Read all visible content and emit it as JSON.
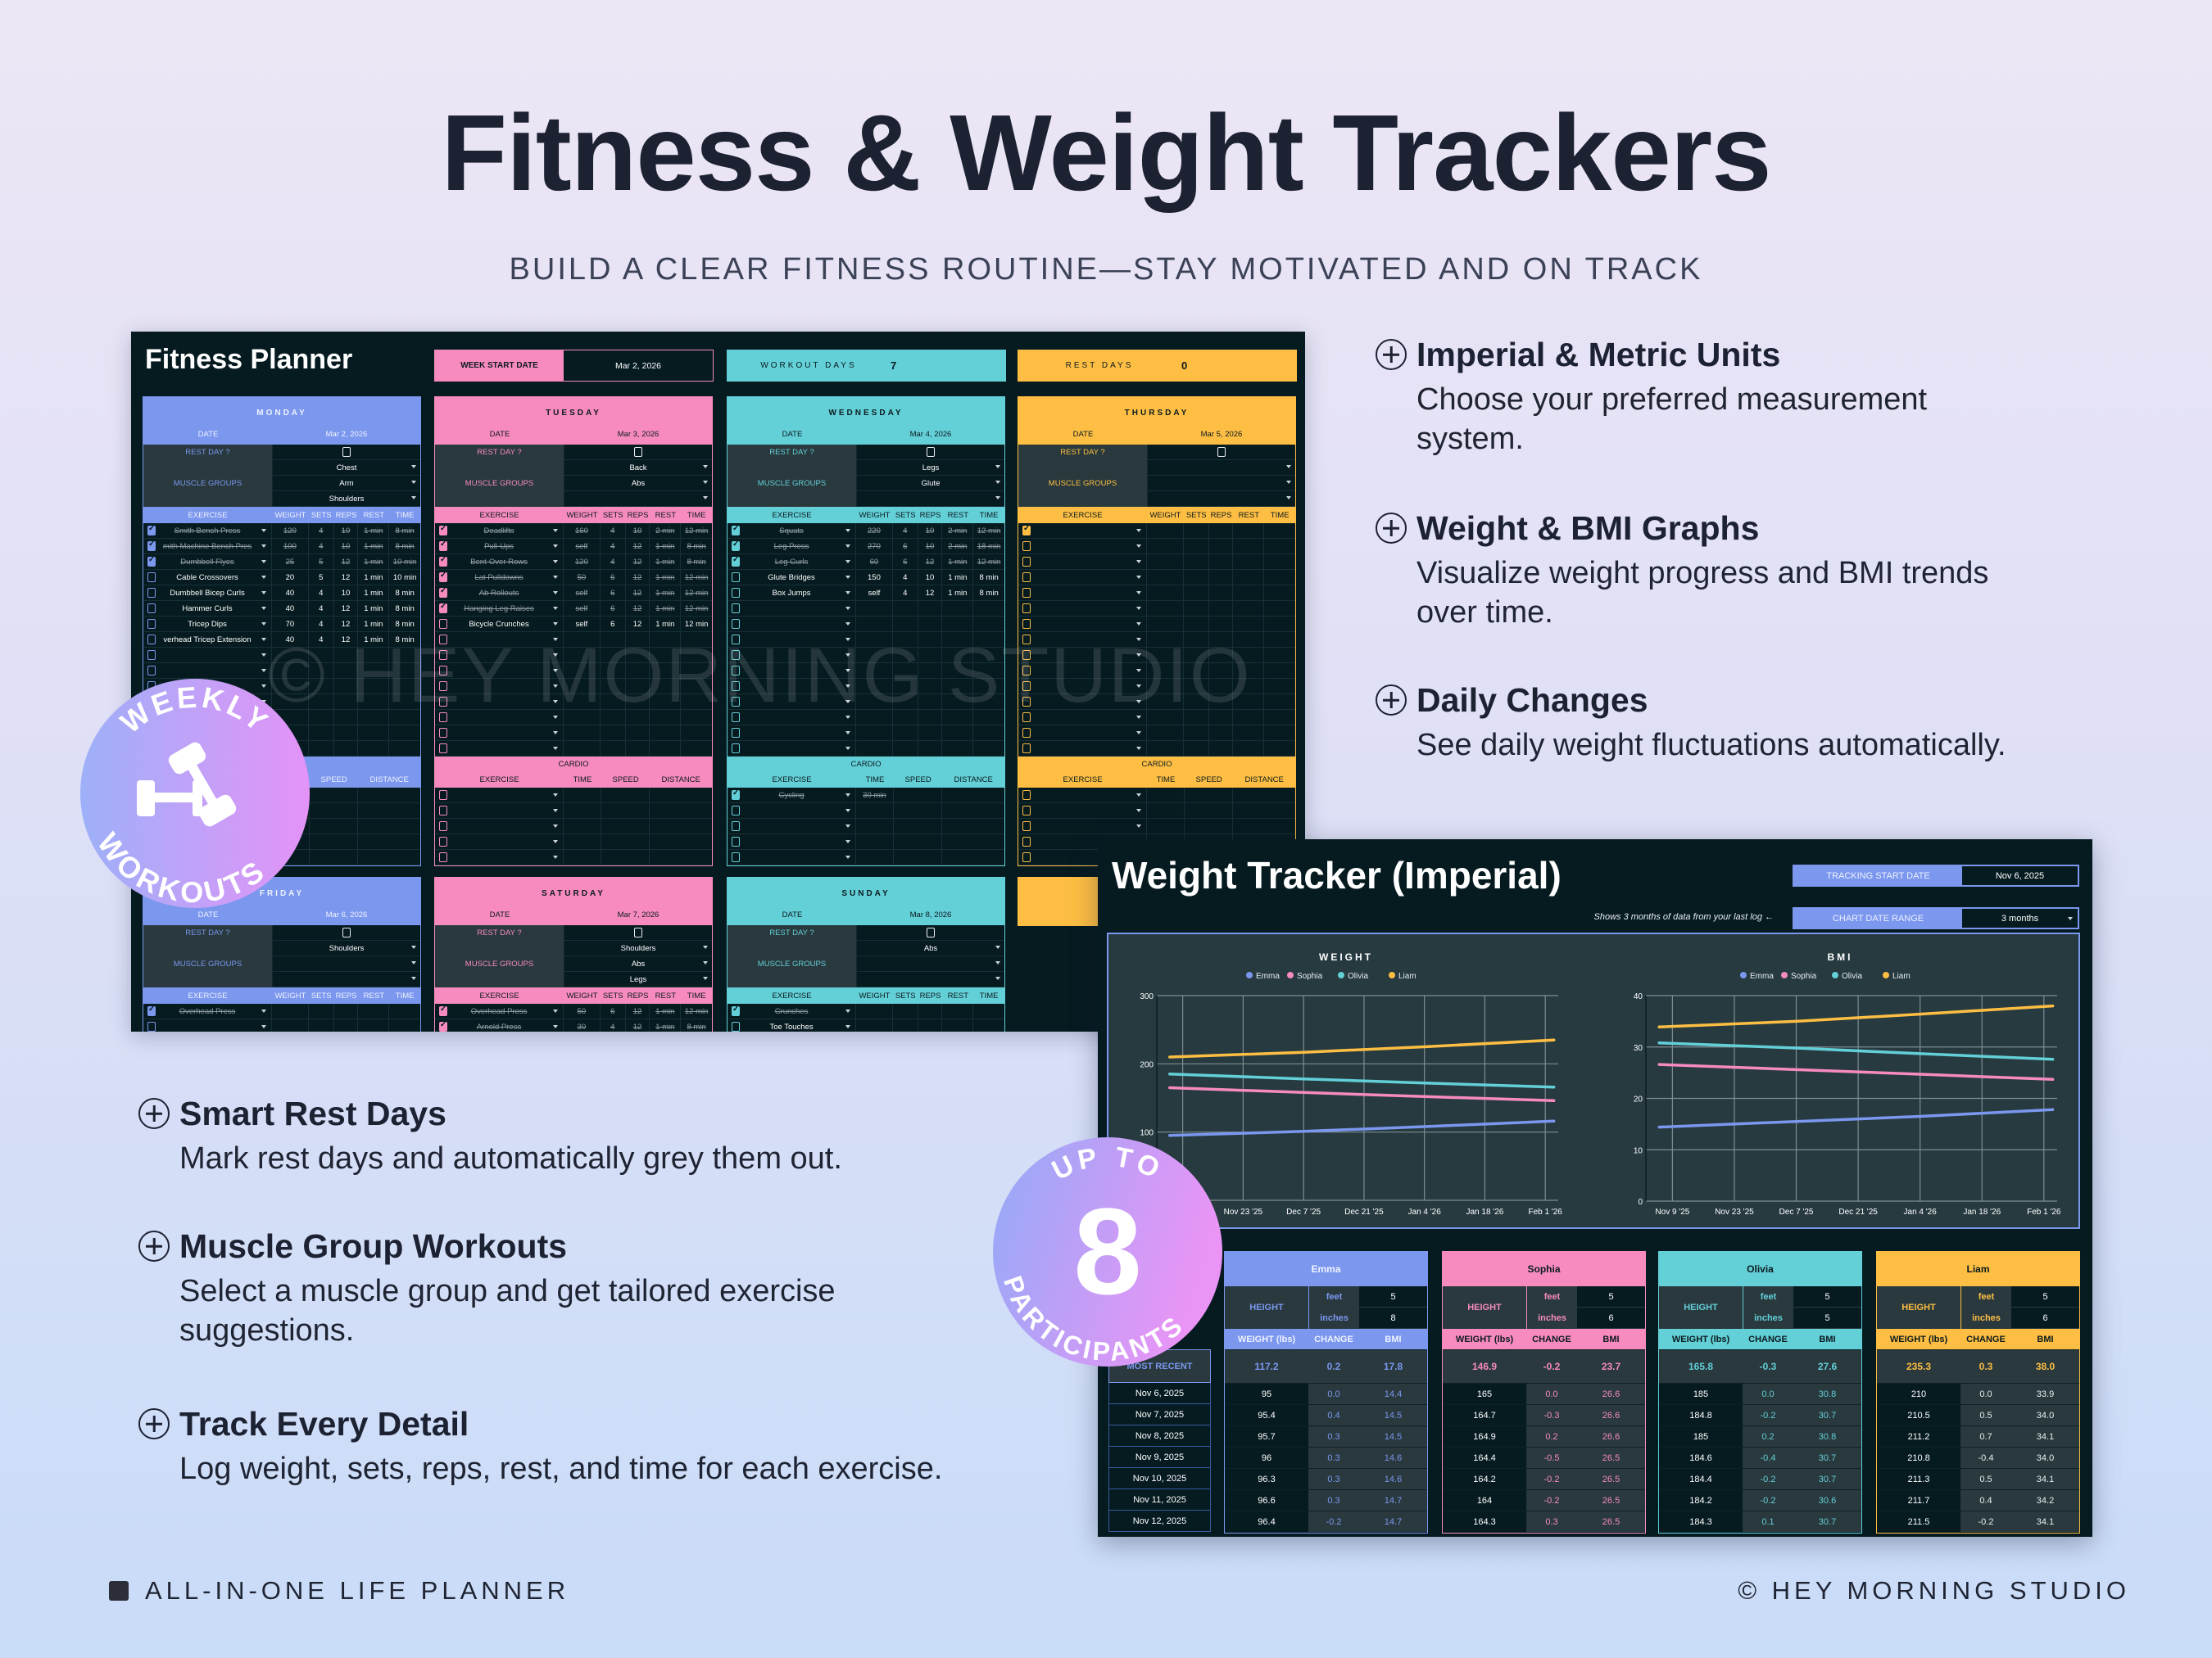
{
  "header": {
    "title": "Fitness & Weight Trackers",
    "subtitle": "BUILD A CLEAR FITNESS ROUTINE—STAY MOTIVATED AND ON TRACK"
  },
  "features_right": [
    {
      "heading": "Imperial & Metric Units",
      "desc_lines": [
        "Choose your preferred measurement",
        "system."
      ]
    },
    {
      "heading": "Weight & BMI Graphs",
      "desc_lines": [
        "Visualize weight progress and BMI trends",
        "over time."
      ]
    },
    {
      "heading": "Daily Changes",
      "desc_lines": [
        "See daily weight fluctuations automatically."
      ]
    }
  ],
  "features_left": [
    {
      "heading": "Smart Rest Days",
      "desc_lines": [
        "Mark rest days and automatically grey them out."
      ]
    },
    {
      "heading": "Muscle Group Workouts",
      "desc_lines": [
        "Select a muscle group and get tailored exercise",
        "suggestions."
      ]
    },
    {
      "heading": "Track Every Detail",
      "desc_lines": [
        "Log weight, sets, reps, rest, and time for each exercise."
      ]
    }
  ],
  "badges": {
    "weekly": {
      "top": "WEEKLY",
      "bottom": "WORKOUTS",
      "icon": "dumbbell-icon"
    },
    "participants": {
      "top": "UP TO",
      "number": "8",
      "bottom": "PARTICIPANTS"
    }
  },
  "footer": {
    "left": "ALL-IN-ONE LIFE PLANNER",
    "right": "© HEY MORNING STUDIO"
  },
  "colors": {
    "blue": "#7b97ee",
    "pink": "#f78bbf",
    "teal": "#63cfd7",
    "yellow": "#fdbe43",
    "panel": "#061b20",
    "cell_gray": "#29393e"
  },
  "planner": {
    "title": "Fitness Planner",
    "week_start_label": "WEEK START DATE",
    "week_start": "Mar 2, 2026",
    "workout_days_label": "WORKOUT DAYS",
    "workout_days": "7",
    "rest_days_label": "REST DAYS",
    "rest_days": "0",
    "watermark": "© HEY MORNING STUDIO",
    "labels": {
      "date": "DATE",
      "rest_day": "REST DAY ?",
      "muscle_groups": "MUSCLE GROUPS",
      "cardio": "CARDIO",
      "exercise_cols": [
        "EXERCISE",
        "WEIGHT",
        "SETS",
        "REPS",
        "REST",
        "TIME"
      ],
      "cardio_cols": [
        "EXERCISE",
        "TIME",
        "SPEED",
        "DISTANCE"
      ]
    },
    "days": [
      {
        "name": "MONDAY",
        "date": "Mar 2, 2026",
        "color": "#7b97ee",
        "text_color": "#eef2ff",
        "rest_day": false,
        "muscle_groups": [
          "Chest",
          "Arm",
          "Shoulders"
        ],
        "exercises": [
          {
            "done": true,
            "name": "Smith Bench Press",
            "weight": "120",
            "sets": "4",
            "reps": "10",
            "rest": "1 min",
            "time": "8 min"
          },
          {
            "done": true,
            "name": "mith Machine Bench Pres",
            "weight": "100",
            "sets": "4",
            "reps": "10",
            "rest": "1 min",
            "time": "8 min"
          },
          {
            "done": true,
            "name": "Dumbbell Flyes",
            "weight": "25",
            "sets": "5",
            "reps": "12",
            "rest": "1 min",
            "time": "10 min"
          },
          {
            "done": false,
            "name": "Cable Crossovers",
            "weight": "20",
            "sets": "5",
            "reps": "12",
            "rest": "1 min",
            "time": "10 min"
          },
          {
            "done": false,
            "name": "Dumbbell Bicep Curls",
            "weight": "40",
            "sets": "4",
            "reps": "10",
            "rest": "1 min",
            "time": "8 min"
          },
          {
            "done": false,
            "name": "Hammer Curls",
            "weight": "40",
            "sets": "4",
            "reps": "12",
            "rest": "1 min",
            "time": "8 min"
          },
          {
            "done": false,
            "name": "Tricep Dips",
            "weight": "70",
            "sets": "4",
            "reps": "12",
            "rest": "1 min",
            "time": "8 min"
          },
          {
            "done": false,
            "name": "verhead Tricep Extension",
            "weight": "40",
            "sets": "4",
            "reps": "12",
            "rest": "1 min",
            "time": "8 min"
          }
        ],
        "cardio": []
      },
      {
        "name": "TUESDAY",
        "date": "Mar 3, 2026",
        "color": "#f78bbf",
        "text_color": "#0b1a1e",
        "rest_day": false,
        "muscle_groups": [
          "Back",
          "Abs",
          ""
        ],
        "exercises": [
          {
            "done": true,
            "name": "Deadlifts",
            "weight": "160",
            "sets": "4",
            "reps": "10",
            "rest": "2 min",
            "time": "12 min"
          },
          {
            "done": true,
            "name": "Pull-Ups",
            "weight": "self",
            "sets": "4",
            "reps": "12",
            "rest": "1 min",
            "time": "8 min"
          },
          {
            "done": true,
            "name": "Bent-Over Rows",
            "weight": "120",
            "sets": "4",
            "reps": "12",
            "rest": "1 min",
            "time": "8 min"
          },
          {
            "done": true,
            "name": "Lat Pulldowns",
            "weight": "50",
            "sets": "6",
            "reps": "12",
            "rest": "1 min",
            "time": "12 min"
          },
          {
            "done": true,
            "name": "Ab Rollouts",
            "weight": "self",
            "sets": "6",
            "reps": "12",
            "rest": "1 min",
            "time": "12 min"
          },
          {
            "done": true,
            "name": "Hanging Leg Raises",
            "weight": "self",
            "sets": "6",
            "reps": "12",
            "rest": "1 min",
            "time": "12 min"
          },
          {
            "done": false,
            "name": "Bicycle Crunches",
            "weight": "self",
            "sets": "6",
            "reps": "12",
            "rest": "1 min",
            "time": "12 min"
          }
        ],
        "cardio": []
      },
      {
        "name": "WEDNESDAY",
        "date": "Mar 4, 2026",
        "color": "#63cfd7",
        "text_color": "#0b1a1e",
        "rest_day": false,
        "muscle_groups": [
          "Legs",
          "Glute",
          ""
        ],
        "exercises": [
          {
            "done": true,
            "name": "Squats",
            "weight": "220",
            "sets": "4",
            "reps": "10",
            "rest": "2 min",
            "time": "12 min"
          },
          {
            "done": true,
            "name": "Leg Press",
            "weight": "270",
            "sets": "6",
            "reps": "10",
            "rest": "2 min",
            "time": "18 min"
          },
          {
            "done": true,
            "name": "Leg Curls",
            "weight": "60",
            "sets": "6",
            "reps": "12",
            "rest": "1 min",
            "time": "12 min"
          },
          {
            "done": false,
            "name": "Glute Bridges",
            "weight": "150",
            "sets": "4",
            "reps": "10",
            "rest": "1 min",
            "time": "8 min"
          },
          {
            "done": false,
            "name": "Box Jumps",
            "weight": "self",
            "sets": "4",
            "reps": "12",
            "rest": "1 min",
            "time": "8 min"
          }
        ],
        "cardio": [
          {
            "done": true,
            "name": "Cycling",
            "time": "30 min",
            "speed": "",
            "distance": ""
          }
        ]
      },
      {
        "name": "THURSDAY",
        "date": "Mar 5, 2026",
        "color": "#fdbe43",
        "text_color": "#0b1a1e",
        "rest_day": false,
        "muscle_groups": [
          "",
          "",
          ""
        ],
        "exercises": [
          {
            "done": true,
            "name": "",
            "weight": "",
            "sets": "",
            "reps": "",
            "rest": "",
            "time": ""
          }
        ],
        "cardio": []
      },
      {
        "name": "FRIDAY",
        "date": "Mar 6, 2026",
        "color": "#7b97ee",
        "text_color": "#eef2ff",
        "rest_day": false,
        "muscle_groups": [
          "Shoulders",
          "",
          ""
        ],
        "exercises": [
          {
            "done": true,
            "name": "Overhead Press",
            "weight": "",
            "sets": "",
            "reps": "",
            "rest": "",
            "time": ""
          }
        ],
        "cardio": []
      },
      {
        "name": "SATURDAY",
        "date": "Mar 7, 2026",
        "color": "#f78bbf",
        "text_color": "#0b1a1e",
        "rest_day": false,
        "muscle_groups": [
          "Shoulders",
          "Abs",
          "Legs"
        ],
        "exercises": [
          {
            "done": true,
            "name": "Overhead Press",
            "weight": "50",
            "sets": "6",
            "reps": "12",
            "rest": "1 min",
            "time": "12 min"
          },
          {
            "done": true,
            "name": "Arnold Press",
            "weight": "30",
            "sets": "4",
            "reps": "12",
            "rest": "1 min",
            "time": "8 min"
          }
        ],
        "cardio": []
      },
      {
        "name": "SUNDAY",
        "date": "Mar 8, 2026",
        "color": "#63cfd7",
        "text_color": "#0b1a1e",
        "rest_day": false,
        "muscle_groups": [
          "Abs",
          "",
          ""
        ],
        "exercises": [
          {
            "done": true,
            "name": "Crunches",
            "weight": "",
            "sets": "",
            "reps": "",
            "rest": "",
            "time": ""
          },
          {
            "done": false,
            "name": "Toe Touches",
            "weight": "",
            "sets": "",
            "reps": "",
            "rest": "",
            "time": ""
          }
        ],
        "cardio": []
      }
    ]
  },
  "tracker": {
    "title": "Weight Tracker (Imperial)",
    "tracking_start_label": "TRACKING START DATE",
    "tracking_start": "Nov 6, 2025",
    "range_note": "Shows 3 months of data from your last log ←",
    "range_label": "CHART DATE RANGE",
    "range_value": "3 months",
    "labels": {
      "height": "HEIGHT",
      "feet": "feet",
      "inches": "inches",
      "weight": "WEIGHT (lbs)",
      "change": "CHANGE",
      "bmi": "BMI",
      "most_recent": "MOST RECENT"
    },
    "dates": [
      "Nov 6, 2025",
      "Nov 7, 2025",
      "Nov 8, 2025",
      "Nov 9, 2025",
      "Nov 10, 2025",
      "Nov 11, 2025",
      "Nov 12, 2025"
    ],
    "participants": [
      {
        "name": "Emma",
        "color": "#7b97ee",
        "name_color": "#eef2ff",
        "feet": "5",
        "inches": "8",
        "recent": {
          "weight": "117.2",
          "change": "0.2",
          "bmi": "17.8"
        },
        "rows": [
          [
            "95",
            "0.0",
            "14.4"
          ],
          [
            "95.4",
            "0.4",
            "14.5"
          ],
          [
            "95.7",
            "0.3",
            "14.5"
          ],
          [
            "96",
            "0.3",
            "14.6"
          ],
          [
            "96.3",
            "0.3",
            "14.6"
          ],
          [
            "96.6",
            "0.3",
            "14.7"
          ],
          [
            "96.4",
            "-0.2",
            "14.7"
          ]
        ]
      },
      {
        "name": "Sophia",
        "color": "#f78bbf",
        "name_color": "#0b1a1e",
        "feet": "5",
        "inches": "6",
        "recent": {
          "weight": "146.9",
          "change": "-0.2",
          "bmi": "23.7"
        },
        "rows": [
          [
            "165",
            "0.0",
            "26.6"
          ],
          [
            "164.7",
            "-0.3",
            "26.6"
          ],
          [
            "164.9",
            "0.2",
            "26.6"
          ],
          [
            "164.4",
            "-0.5",
            "26.5"
          ],
          [
            "164.2",
            "-0.2",
            "26.5"
          ],
          [
            "164",
            "-0.2",
            "26.5"
          ],
          [
            "164.3",
            "0.3",
            "26.5"
          ]
        ]
      },
      {
        "name": "Olivia",
        "color": "#63cfd7",
        "name_color": "#0b1a1e",
        "feet": "5",
        "inches": "5",
        "recent": {
          "weight": "165.8",
          "change": "-0.3",
          "bmi": "27.6"
        },
        "rows": [
          [
            "185",
            "0.0",
            "30.8"
          ],
          [
            "184.8",
            "-0.2",
            "30.7"
          ],
          [
            "185",
            "0.2",
            "30.8"
          ],
          [
            "184.6",
            "-0.4",
            "30.7"
          ],
          [
            "184.4",
            "-0.2",
            "30.7"
          ],
          [
            "184.2",
            "-0.2",
            "30.6"
          ],
          [
            "184.3",
            "0.1",
            "30.7"
          ]
        ]
      },
      {
        "name": "Liam",
        "color": "#fdbe43",
        "name_color": "#0b1a1e",
        "feet": "5",
        "inches": "6",
        "recent": {
          "weight": "235.3",
          "change": "0.3",
          "bmi": "38.0"
        },
        "rows": [
          [
            "210",
            "0.0",
            "33.9"
          ],
          [
            "210.5",
            "0.5",
            "34.0"
          ],
          [
            "211.2",
            "0.7",
            "34.1"
          ],
          [
            "210.8",
            "-0.4",
            "34.0"
          ],
          [
            "211.3",
            "0.5",
            "34.1"
          ],
          [
            "211.7",
            "0.4",
            "34.2"
          ],
          [
            "211.5",
            "-0.2",
            "34.1"
          ]
        ]
      }
    ]
  },
  "chart_data": [
    {
      "type": "line",
      "title": "WEIGHT",
      "legend": "top",
      "x_ticks": [
        "Nov 9 '25",
        "Nov 23 '25",
        "Dec 7 '25",
        "Dec 21 '25",
        "Jan 4 '26",
        "Jan 18 '26",
        "Feb 1 '26"
      ],
      "x_tick_dates": [
        "2025-11-09",
        "2025-11-23",
        "2025-12-07",
        "2025-12-21",
        "2026-01-04",
        "2026-01-18",
        "2026-02-01"
      ],
      "xlim": [
        "2025-11-03",
        "2026-02-04"
      ],
      "ylim": [
        0,
        300
      ],
      "y_ticks": [
        0,
        100,
        200,
        300
      ],
      "grid": true,
      "x": [
        "2025-11-06",
        "2025-12-07",
        "2026-01-04",
        "2026-02-03"
      ],
      "series": [
        {
          "name": "Emma",
          "color": "#7b97ee",
          "values": [
            95,
            101,
            108,
            116
          ]
        },
        {
          "name": "Sophia",
          "color": "#f78bbf",
          "values": [
            165,
            158,
            152,
            146
          ]
        },
        {
          "name": "Olivia",
          "color": "#63cfd7",
          "values": [
            185,
            178,
            172,
            166
          ]
        },
        {
          "name": "Liam",
          "color": "#fdbe43",
          "values": [
            210,
            217,
            225,
            235
          ]
        }
      ]
    },
    {
      "type": "line",
      "title": "BMI",
      "legend": "top",
      "x_ticks": [
        "Nov 9 '25",
        "Nov 23 '25",
        "Dec 7 '25",
        "Dec 21 '25",
        "Jan 4 '26",
        "Jan 18 '26",
        "Feb 1 '26"
      ],
      "x_tick_dates": [
        "2025-11-09",
        "2025-11-23",
        "2025-12-07",
        "2025-12-21",
        "2026-01-04",
        "2026-01-18",
        "2026-02-01"
      ],
      "xlim": [
        "2025-11-03",
        "2026-02-04"
      ],
      "ylim": [
        0,
        40
      ],
      "y_ticks": [
        0,
        10,
        20,
        30,
        40
      ],
      "grid": true,
      "x": [
        "2025-11-06",
        "2025-12-07",
        "2026-01-04",
        "2026-02-03"
      ],
      "series": [
        {
          "name": "Emma",
          "color": "#7b97ee",
          "values": [
            14.4,
            15.5,
            16.5,
            17.8
          ]
        },
        {
          "name": "Sophia",
          "color": "#f78bbf",
          "values": [
            26.6,
            25.6,
            24.7,
            23.7
          ]
        },
        {
          "name": "Olivia",
          "color": "#63cfd7",
          "values": [
            30.8,
            29.8,
            28.7,
            27.6
          ]
        },
        {
          "name": "Liam",
          "color": "#fdbe43",
          "values": [
            33.9,
            35.0,
            36.4,
            38.0
          ]
        }
      ]
    }
  ]
}
